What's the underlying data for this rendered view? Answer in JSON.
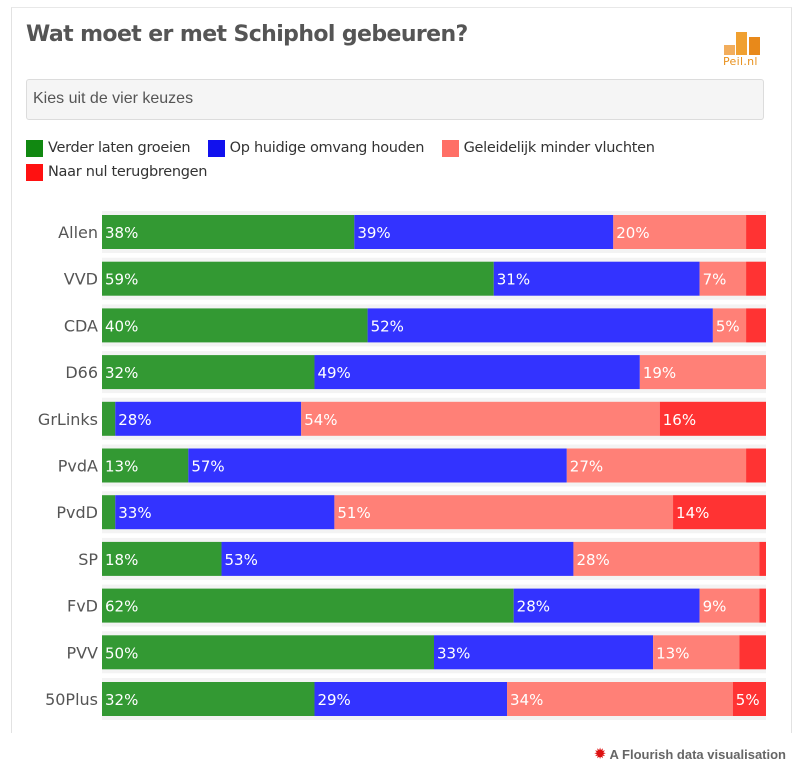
{
  "header": {
    "title": "Wat moet er met Schiphol gebeuren?",
    "logo_text": "Peil.nl",
    "select_value": "Kies uit de vier keuzes"
  },
  "footer": {
    "icon": "flourish-burst-icon",
    "text": "A Flourish data visualisation"
  },
  "chart_data": {
    "type": "bar",
    "orientation": "horizontal-stacked-100",
    "title": "Wat moet er met Schiphol gebeuren?",
    "xlabel": "",
    "ylabel": "",
    "xlim": [
      0,
      100
    ],
    "grid": false,
    "legend_position": "top-left",
    "categories": [
      "Allen",
      "VVD",
      "CDA",
      "D66",
      "GrLinks",
      "PvdA",
      "PvdD",
      "SP",
      "FvD",
      "PVV",
      "50Plus"
    ],
    "series": [
      {
        "name": "Verder laten groeien",
        "color": "#339933",
        "values": [
          38,
          59,
          40,
          32,
          2,
          13,
          2,
          18,
          62,
          50,
          32
        ]
      },
      {
        "name": "Op huidige omvang houden",
        "color": "#3333ff",
        "values": [
          39,
          31,
          52,
          49,
          28,
          57,
          33,
          53,
          28,
          33,
          29
        ]
      },
      {
        "name": "Geleidelijk minder vluchten",
        "color": "#ff8077",
        "values": [
          20,
          7,
          5,
          19,
          54,
          27,
          51,
          28,
          9,
          13,
          34
        ]
      },
      {
        "name": "Naar nul terugbrengen",
        "color": "#ff3333",
        "values": [
          3,
          3,
          3,
          0,
          16,
          3,
          14,
          1,
          1,
          4,
          5
        ]
      }
    ],
    "shown_labels": [
      [
        "38%",
        "39%",
        "20%",
        ""
      ],
      [
        "59%",
        "31%",
        "7%",
        ""
      ],
      [
        "40%",
        "52%",
        "5%",
        ""
      ],
      [
        "32%",
        "49%",
        "19%",
        ""
      ],
      [
        "",
        "28%",
        "54%",
        "16%"
      ],
      [
        "13%",
        "57%",
        "27%",
        ""
      ],
      [
        "",
        "33%",
        "51%",
        "14%"
      ],
      [
        "18%",
        "53%",
        "28%",
        ""
      ],
      [
        "62%",
        "28%",
        "9%",
        ""
      ],
      [
        "50%",
        "33%",
        "13%",
        ""
      ],
      [
        "32%",
        "29%",
        "34%",
        "5%"
      ]
    ]
  }
}
